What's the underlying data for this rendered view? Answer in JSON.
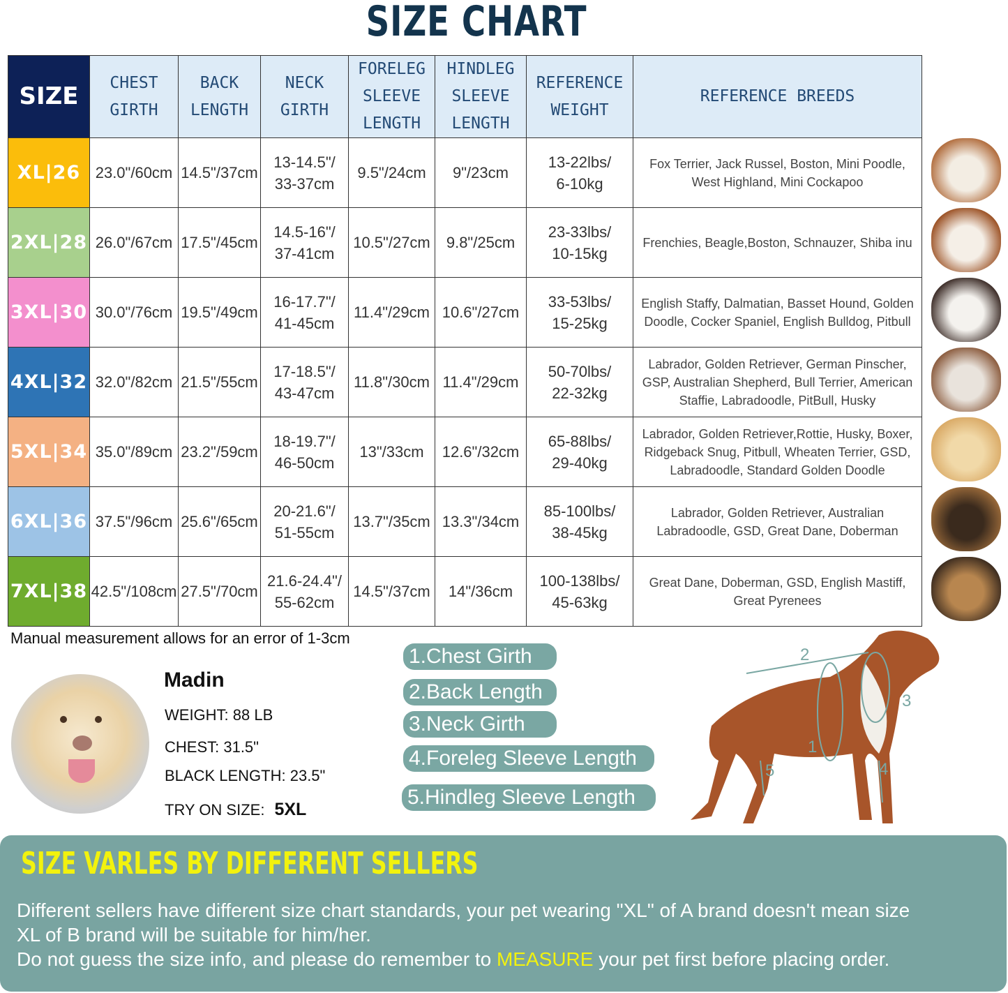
{
  "title": "SIZE CHART",
  "table": {
    "headers": [
      "SIZE",
      "CHEST\nGIRTH",
      "BACK\nLENGTH",
      "NECK\nGIRTH",
      "FORELEG\nSLEEVE\nLENGTH",
      "HINDLEG\nSLEEVE\nLENGTH",
      "REFERENCE\nWEIGHT",
      "REFERENCE BREEDS"
    ],
    "rows": [
      {
        "size": "XL|26",
        "color": "#fbbd0b",
        "chest": "23.0\"/60cm",
        "back": "14.5\"/37cm",
        "neck": "13-14.5\"/\n33-37cm",
        "foreleg": "9.5\"/24cm",
        "hindleg": "9\"/23cm",
        "weight": "13-22lbs/\n6-10kg",
        "breeds": "Fox Terrier, Jack Russel, Boston, Mini Poodle, West Highland, Mini Cockapoo"
      },
      {
        "size": "2XL|28",
        "color": "#a8d08d",
        "chest": "26.0\"/67cm",
        "back": "17.5\"/45cm",
        "neck": "14.5-16\"/\n37-41cm",
        "foreleg": "10.5\"/27cm",
        "hindleg": "9.8\"/25cm",
        "weight": "23-33lbs/\n10-15kg",
        "breeds": "Frenchies, Beagle,Boston, Schnauzer, Shiba inu"
      },
      {
        "size": "3XL|30",
        "color": "#f38fcd",
        "chest": "30.0\"/76cm",
        "back": "19.5\"/49cm",
        "neck": "16-17.7\"/\n41-45cm",
        "foreleg": "11.4\"/29cm",
        "hindleg": "10.6\"/27cm",
        "weight": "33-53lbs/\n15-25kg",
        "breeds": "English Staffy, Dalmatian, Basset Hound, Golden Doodle, Cocker Spaniel, English Bulldog, Pitbull"
      },
      {
        "size": "4XL|32",
        "color": "#2e74b5",
        "chest": "32.0\"/82cm",
        "back": "21.5\"/55cm",
        "neck": "17-18.5\"/\n43-47cm",
        "foreleg": "11.8\"/30cm",
        "hindleg": "11.4\"/29cm",
        "weight": "50-70lbs/\n22-32kg",
        "breeds": "Labrador, Golden Retriever, German Pinscher, GSP, Australian Shepherd, Bull Terrier, American Staffie, Labradoodle, PitBull, Husky"
      },
      {
        "size": "5XL|34",
        "color": "#f4b183",
        "chest": "35.0\"/89cm",
        "back": "23.2\"/59cm",
        "neck": "18-19.7\"/\n46-50cm",
        "foreleg": "13\"/33cm",
        "hindleg": "12.6\"/32cm",
        "weight": "65-88lbs/\n29-40kg",
        "breeds": "Labrador, Golden Retriever,Rottie, Husky, Boxer, Ridgeback Snug, Pitbull, Wheaten Terrier, GSD, Labradoodle,  Standard Golden Doodle"
      },
      {
        "size": "6XL|36",
        "color": "#9dc3e6",
        "chest": "37.5\"/96cm",
        "back": "25.6\"/65cm",
        "neck": "20-21.6\"/\n51-55cm",
        "foreleg": "13.7\"/35cm",
        "hindleg": "13.3\"/34cm",
        "weight": "85-100lbs/\n38-45kg",
        "breeds": "Labrador, Golden Retriever, Australian Labradoodle, GSD, Great Dane, Doberman"
      },
      {
        "size": "7XL|38",
        "color": "#6fac2e",
        "chest": "42.5\"/108cm",
        "back": "27.5\"/70cm",
        "neck": "21.6-24.4\"/\n55-62cm",
        "foreleg": "14.5\"/37cm",
        "hindleg": "14\"/36cm",
        "weight": "100-138lbs/\n45-63kg",
        "breeds": "Great Dane, Doberman, GSD, English Mastiff, Great Pyrenees"
      }
    ]
  },
  "note": "Manual measurement allows for an error of 1-3cm",
  "example": {
    "name": "Madin",
    "weight": "WEIGHT: 88 LB",
    "chest": "CHEST: 31.5\"",
    "back": "BLACK LENGTH: 23.5\"",
    "try_label": "TRY ON SIZE:",
    "try_size": "5XL"
  },
  "legend": [
    "1.Chest Girth",
    "2.Back Length",
    "3.Neck Girth",
    "4.Foreleg Sleeve Length",
    "5.Hindleg Sleeve Length"
  ],
  "diagram_numbers": [
    "1",
    "2",
    "3",
    "4",
    "5"
  ],
  "panel": {
    "heading": "SIZE VARLES BY DIFFERENT SELLERS",
    "line1": "Different sellers have different size chart standards, your pet wearing \"XL\" of A brand doesn't mean size",
    "line2": " XL of B brand will be suitable for him/her.",
    "line3_a": "Do not guess the size info, and please do remember to ",
    "line3_hl": "MEASURE",
    "line3_b": " your pet first before placing order."
  },
  "colors": {
    "header_navy": "#0d2157",
    "header_bg": "#ddebf7",
    "pill": "#7aa7a3",
    "panel": "#79a4a1",
    "highlight": "#f2f20e"
  }
}
